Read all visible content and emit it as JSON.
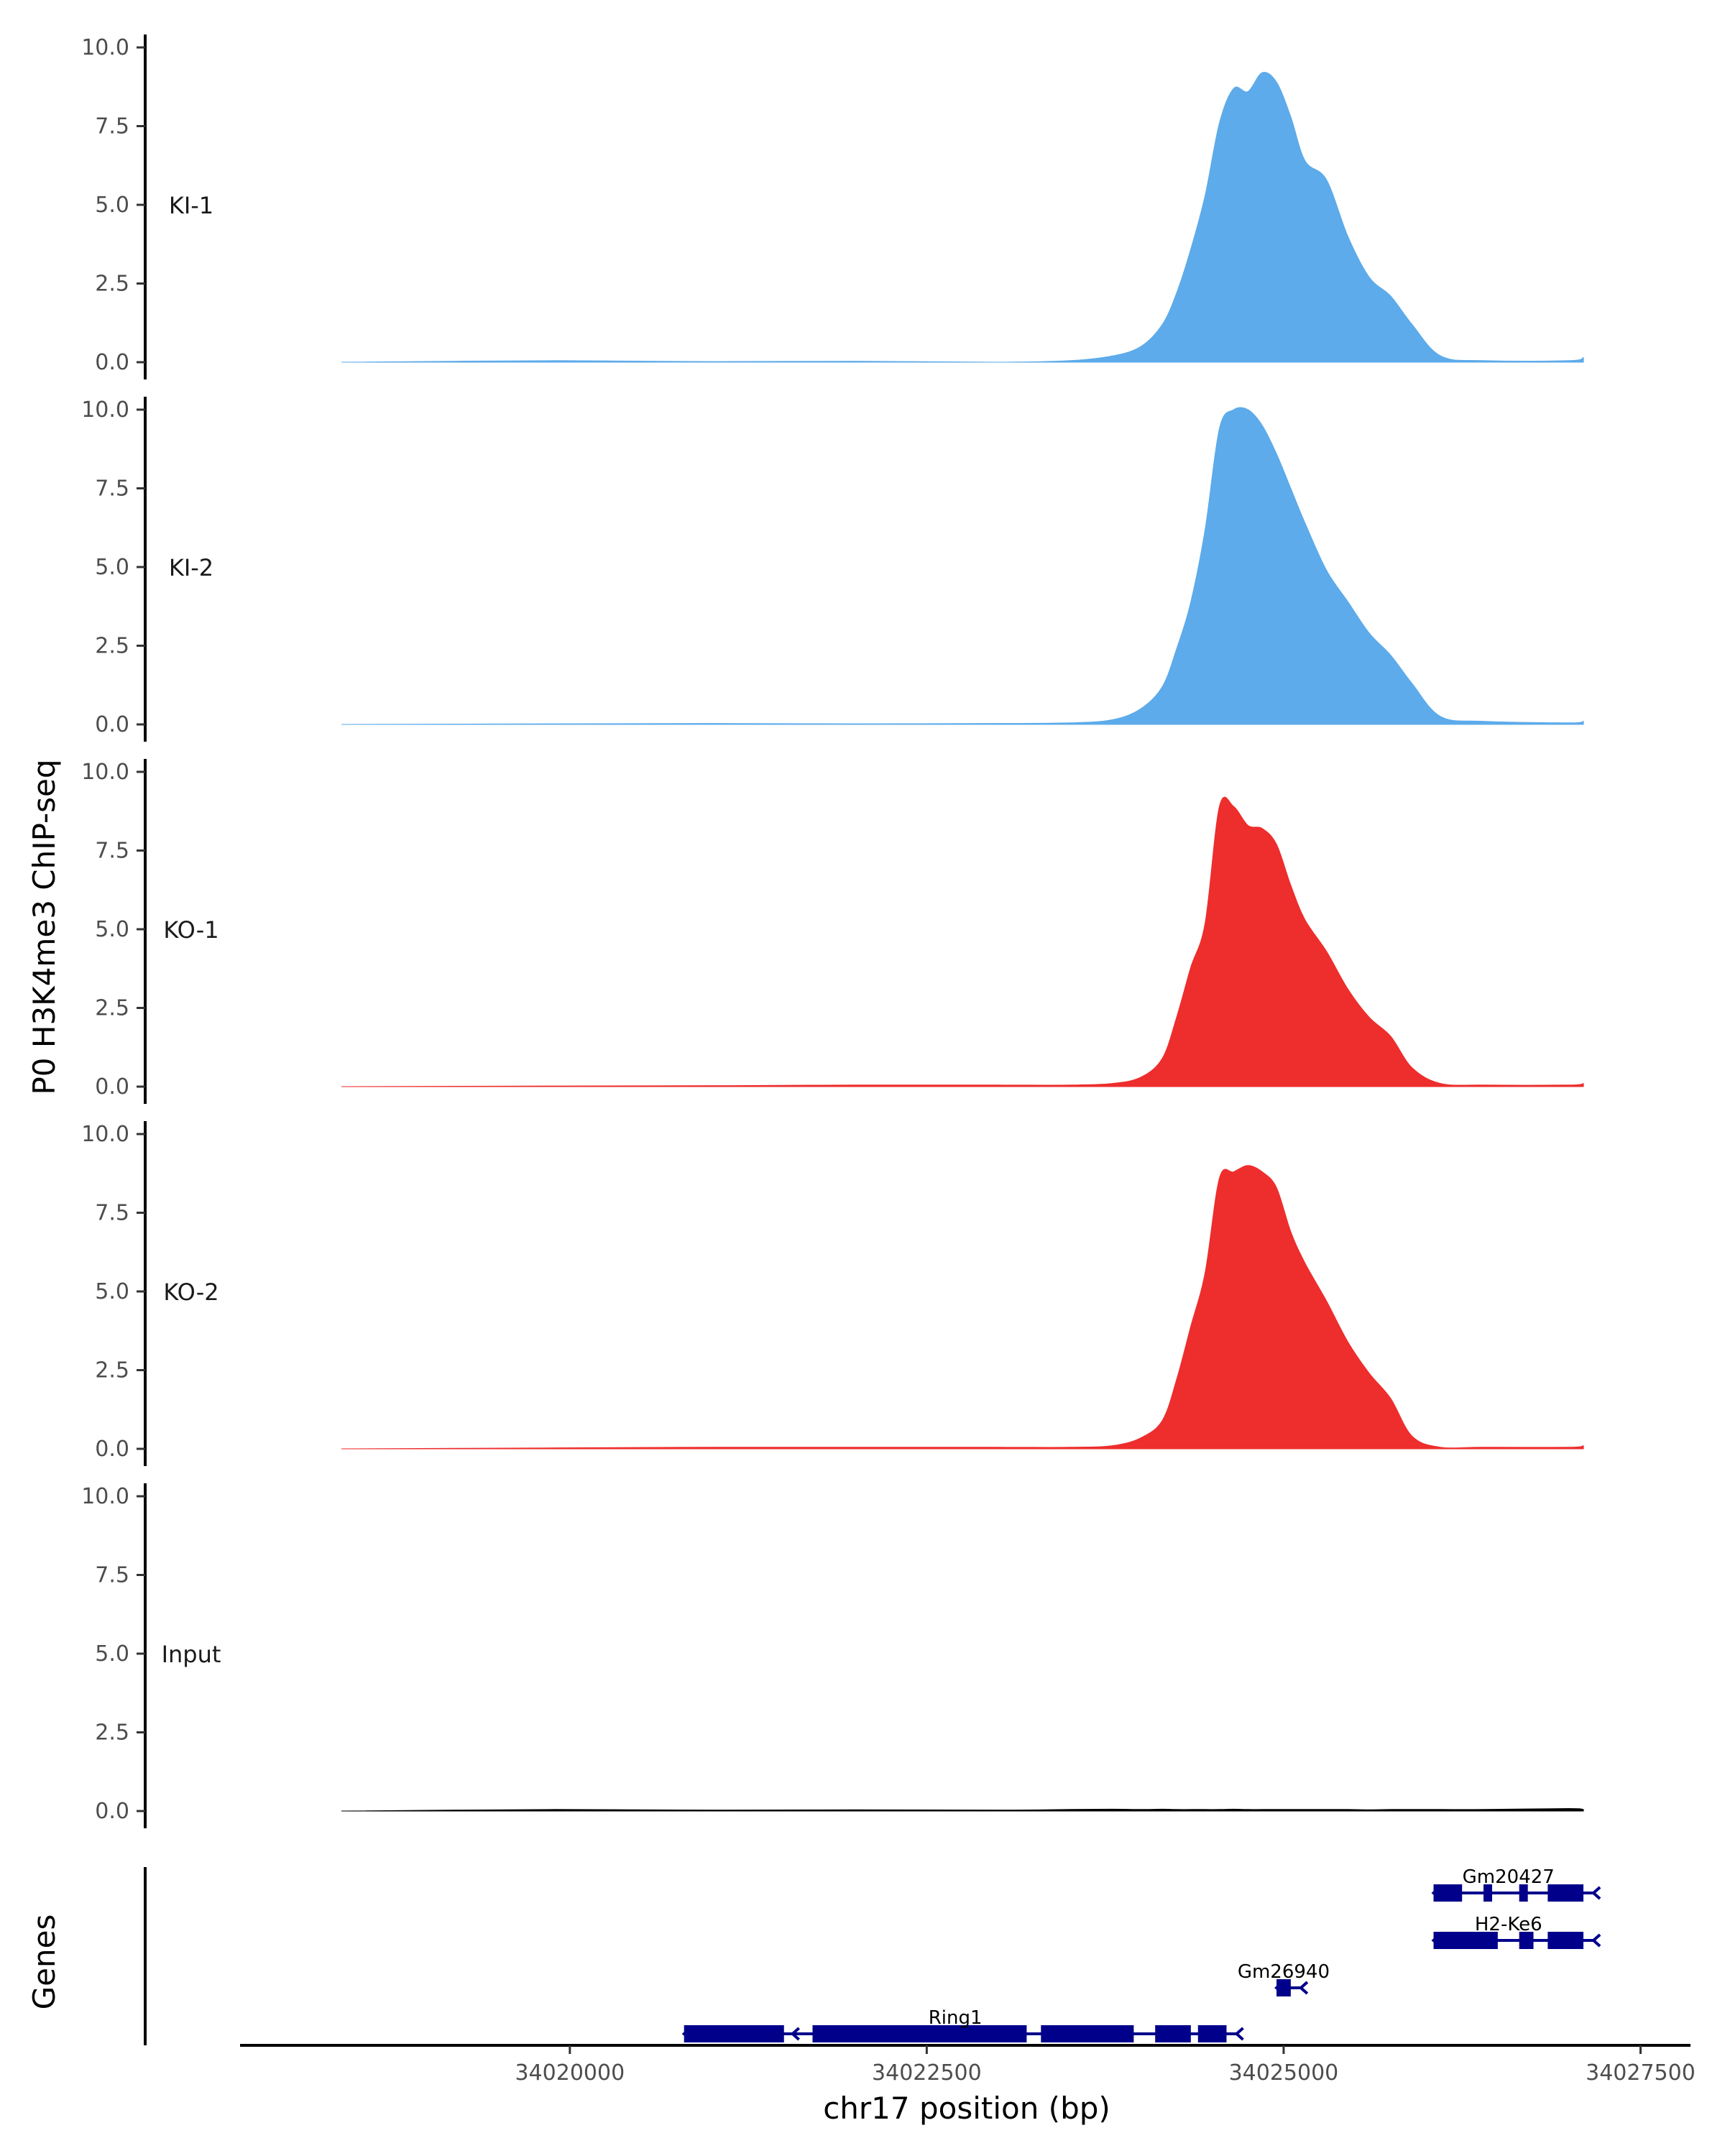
{
  "chart_data": {
    "type": "area",
    "ylabel": "P0 H3K4me3 ChIP-seq",
    "xlabel": "chr17 position (bp)",
    "xlim": [
      34017700,
      34027850
    ],
    "ylim": [
      0,
      10
    ],
    "x_ticks": [
      34020000,
      34022500,
      34025000,
      34027500
    ],
    "x_tick_labels": [
      "34020000",
      "34022500",
      "34025000",
      "34027500"
    ],
    "y_ticks": [
      0,
      2.5,
      5,
      7.5,
      10
    ],
    "y_tick_labels": [
      "0.0",
      "2.5",
      "5.0",
      "7.5",
      "10.0"
    ],
    "x_positions": [
      34018400,
      34019900,
      34021000,
      34022000,
      34023000,
      34023500,
      34023800,
      34024000,
      34024150,
      34024250,
      34024350,
      34024450,
      34024550,
      34024650,
      34024750,
      34024850,
      34024950,
      34025050,
      34025150,
      34025300,
      34025450,
      34025600,
      34025750,
      34025900,
      34026100,
      34026400,
      34027000,
      34027100
    ],
    "series": [
      {
        "name": "KI-1",
        "color": "#5dabea",
        "values": [
          0,
          0.05,
          0.02,
          0.03,
          0,
          0.05,
          0.2,
          0.5,
          1.2,
          2.2,
          3.6,
          5.3,
          7.6,
          8.7,
          8.6,
          9.2,
          8.9,
          7.8,
          6.4,
          5.8,
          4.0,
          2.7,
          2.1,
          1.2,
          0.2,
          0.05,
          0.05,
          0.15
        ]
      },
      {
        "name": "KI-2",
        "color": "#5dabea",
        "values": [
          0,
          0.02,
          0.03,
          0.02,
          0.03,
          0.05,
          0.15,
          0.5,
          1.2,
          2.4,
          3.9,
          6.2,
          9.4,
          10.0,
          10.0,
          9.5,
          8.6,
          7.5,
          6.4,
          4.9,
          3.9,
          2.9,
          2.2,
          1.3,
          0.25,
          0.1,
          0.05,
          0.1
        ]
      },
      {
        "name": "KO-1",
        "color": "#ee2d2d",
        "values": [
          0,
          0.02,
          0.03,
          0.05,
          0.05,
          0.05,
          0.1,
          0.3,
          0.9,
          2.2,
          3.8,
          5.2,
          8.9,
          8.9,
          8.3,
          8.2,
          7.7,
          6.4,
          5.3,
          4.3,
          3.1,
          2.2,
          1.6,
          0.6,
          0.1,
          0.05,
          0.05,
          0.1
        ]
      },
      {
        "name": "KO-2",
        "color": "#ee2d2d",
        "values": [
          0,
          0.03,
          0.05,
          0.05,
          0.05,
          0.05,
          0.1,
          0.35,
          0.9,
          2.2,
          3.9,
          5.6,
          8.6,
          8.8,
          9.0,
          8.8,
          8.3,
          6.9,
          5.9,
          4.7,
          3.4,
          2.4,
          1.6,
          0.4,
          0.05,
          0.05,
          0.05,
          0.1
        ]
      },
      {
        "name": "Input",
        "color": "#000000",
        "values": [
          0,
          0.05,
          0.03,
          0.04,
          0.03,
          0.05,
          0.06,
          0.05,
          0.06,
          0.05,
          0.05,
          0.05,
          0.05,
          0.06,
          0.05,
          0.05,
          0.05,
          0.05,
          0.05,
          0.05,
          0.05,
          0.04,
          0.05,
          0.05,
          0.05,
          0.05,
          0.08,
          0.05
        ]
      }
    ],
    "genes_track_label": "Genes",
    "genes": [
      {
        "name": "Gm20427",
        "start": 34026050,
        "end": 34027100,
        "strand": "-",
        "exons": [
          [
            34026050,
            34026250
          ],
          [
            34026400,
            34026450
          ],
          [
            34026650,
            34026700
          ],
          [
            34026850,
            34027100
          ]
        ]
      },
      {
        "name": "H2-Ke6",
        "start": 34026050,
        "end": 34027100,
        "strand": "-",
        "exons": [
          [
            34026050,
            34026500
          ],
          [
            34026650,
            34026750
          ],
          [
            34026850,
            34027100
          ]
        ]
      },
      {
        "name": "Gm26940",
        "start": 34024950,
        "end": 34025050,
        "strand": "-",
        "exons": [
          [
            34024950,
            34025050
          ]
        ]
      },
      {
        "name": "Ring1",
        "start": 34020800,
        "end": 34024600,
        "strand": "-",
        "exons": [
          [
            34020800,
            34021500
          ],
          [
            34021700,
            34023200
          ],
          [
            34023300,
            34023950
          ],
          [
            34024100,
            34024350
          ],
          [
            34024400,
            34024600
          ]
        ]
      }
    ],
    "gene_color": "#00008b"
  }
}
